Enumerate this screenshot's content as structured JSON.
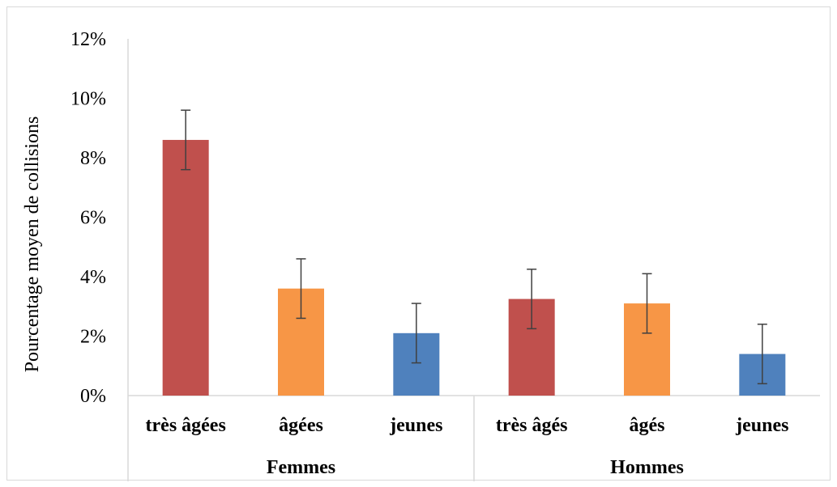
{
  "chart_data": {
    "type": "bar",
    "ylabel": "Pourcentage moyen de collisions",
    "ylim": [
      0,
      12
    ],
    "yticks": [
      "0%",
      "2%",
      "4%",
      "6%",
      "8%",
      "10%",
      "12%"
    ],
    "grid": false,
    "groups": [
      {
        "label": "Femmes",
        "bars": [
          {
            "category": "très âgées",
            "value": 8.6,
            "error": 1.0,
            "color": "#c0504d"
          },
          {
            "category": "âgées",
            "value": 3.6,
            "error": 1.0,
            "color": "#f79646"
          },
          {
            "category": "jeunes",
            "value": 2.1,
            "error": 1.0,
            "color": "#4f81bd"
          }
        ]
      },
      {
        "label": "Hommes",
        "bars": [
          {
            "category": "très âgés",
            "value": 3.25,
            "error": 1.0,
            "color": "#c0504d"
          },
          {
            "category": "âgés",
            "value": 3.1,
            "error": 1.0,
            "color": "#f79646"
          },
          {
            "category": "jeunes",
            "value": 1.4,
            "error": 1.0,
            "color": "#4f81bd"
          }
        ]
      }
    ]
  }
}
